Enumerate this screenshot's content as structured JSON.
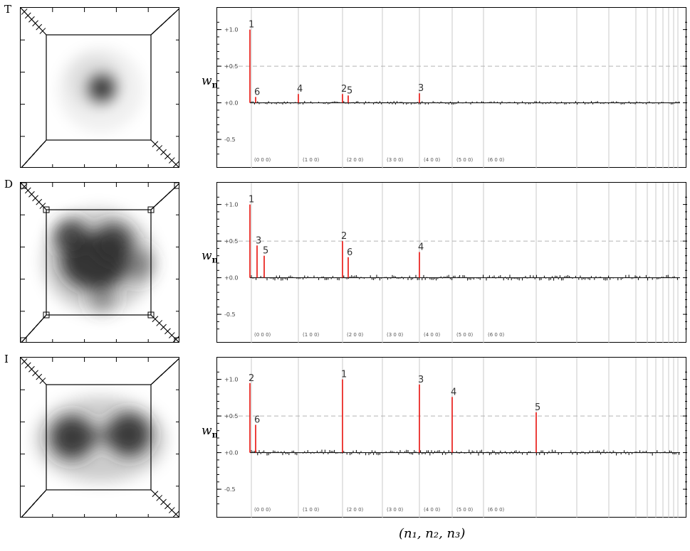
{
  "x_axis_label": "(n₁, n₂, n₃)",
  "y_axis_symbol": "w",
  "y_axis_subscript": "n",
  "y_ticks": [
    "+1.0",
    "+0.5",
    "+0.0",
    "-0.5"
  ],
  "group_labels": [
    "(0 0 0)",
    "(1 0 0)",
    "(2 0 0)",
    "(3 0 0)",
    "(4 0 0)",
    "(5 0 0)",
    "(6 0 0)"
  ],
  "colors": {
    "highlight": "#e8100c",
    "bar": "#000000",
    "guide": "#c8c8c8",
    "dash": "#b4b4b4"
  },
  "panels": [
    {
      "letter": "T",
      "density": "single-central-blob"
    },
    {
      "letter": "D",
      "density": "large-merged-blob"
    },
    {
      "letter": "I",
      "density": "two-separated-blobs"
    }
  ],
  "chart_data": [
    {
      "type": "bar",
      "ylabel": "w_n",
      "xlabel": "(n1, n2, n3)",
      "ylim": [
        -0.8,
        1.2
      ],
      "group_labels": [
        "(0 0 0)",
        "(1 0 0)",
        "(2 0 0)",
        "(3 0 0)",
        "(4 0 0)",
        "(5 0 0)",
        "(6 0 0)"
      ],
      "highlighted_peaks": [
        {
          "label": "1",
          "group": "(0 0 0)",
          "value": 1.0
        },
        {
          "label": "6",
          "group": "(0 0 0)",
          "value": 0.08
        },
        {
          "label": "4",
          "group": "(1 0 0)",
          "value": 0.12
        },
        {
          "label": "2",
          "group": "(2 0 0)",
          "value": 0.12
        },
        {
          "label": "5",
          "group": "(2 0 0)",
          "value": 0.1
        },
        {
          "label": "3",
          "group": "(4 0 0)",
          "value": 0.13
        }
      ]
    },
    {
      "type": "bar",
      "ylabel": "w_n",
      "xlabel": "(n1, n2, n3)",
      "ylim": [
        -0.8,
        1.2
      ],
      "group_labels": [
        "(0 0 0)",
        "(1 0 0)",
        "(2 0 0)",
        "(3 0 0)",
        "(4 0 0)",
        "(5 0 0)",
        "(6 0 0)"
      ],
      "highlighted_peaks": [
        {
          "label": "1",
          "group": "(0 0 0)",
          "value": 1.0
        },
        {
          "label": "3",
          "group": "(0 0 0)",
          "value": 0.44
        },
        {
          "label": "5",
          "group": "(0 0 0)",
          "value": 0.3
        },
        {
          "label": "2",
          "group": "(2 0 0)",
          "value": 0.5
        },
        {
          "label": "6",
          "group": "(2 0 0)",
          "value": 0.28
        },
        {
          "label": "4",
          "group": "(4 0 0)",
          "value": 0.35
        }
      ]
    },
    {
      "type": "bar",
      "ylabel": "w_n",
      "xlabel": "(n1, n2, n3)",
      "ylim": [
        -0.8,
        1.2
      ],
      "group_labels": [
        "(0 0 0)",
        "(1 0 0)",
        "(2 0 0)",
        "(3 0 0)",
        "(4 0 0)",
        "(5 0 0)",
        "(6 0 0)"
      ],
      "highlighted_peaks": [
        {
          "label": "2",
          "group": "(0 0 0)",
          "value": 0.95
        },
        {
          "label": "6",
          "group": "(0 0 0)",
          "value": 0.38
        },
        {
          "label": "1",
          "group": "(2 0 0)",
          "value": 1.0
        },
        {
          "label": "3",
          "group": "(4 0 0)",
          "value": 0.93
        },
        {
          "label": "4",
          "group": "(5 0 0)",
          "value": 0.76
        },
        {
          "label": "5",
          "group": "beyond (6 0 0)",
          "value": 0.55
        }
      ]
    }
  ]
}
